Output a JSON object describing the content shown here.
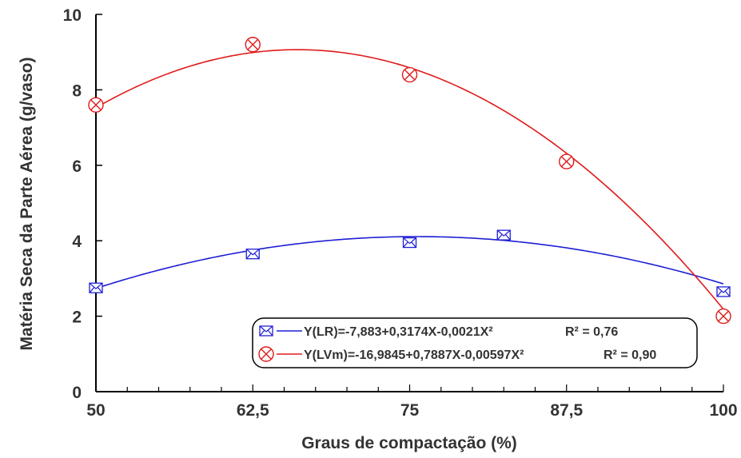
{
  "chart_data": {
    "type": "scatter",
    "title": "",
    "xlabel": "Graus de compactação (%)",
    "ylabel": "Matéria Seca da Parte Aérea (g/vaso)",
    "xlim": [
      50,
      100
    ],
    "ylim": [
      0,
      10
    ],
    "x_ticks": [
      50,
      62.5,
      75,
      87.5,
      100
    ],
    "x_tick_labels": [
      "50",
      "62,5",
      "75",
      "87,5",
      "100"
    ],
    "y_ticks": [
      0,
      2,
      4,
      6,
      8,
      10
    ],
    "y_tick_labels": [
      "0",
      "2",
      "4",
      "6",
      "8",
      "10"
    ],
    "grid": false,
    "legend_position": "bottom-right",
    "series": [
      {
        "name": "Y(LR)=-7,883+0,3174X-0,0021X²",
        "r2_label": "R² = 0,76",
        "color": "#1f1fd6",
        "marker": "envelope-square",
        "fit": {
          "a": -7.883,
          "b": 0.3174,
          "c": -0.0021
        },
        "points": [
          {
            "x": 50,
            "y": 2.75
          },
          {
            "x": 62.5,
            "y": 3.65
          },
          {
            "x": 75,
            "y": 3.95
          },
          {
            "x": 82.5,
            "y": 4.15
          },
          {
            "x": 100,
            "y": 2.65
          }
        ]
      },
      {
        "name": "Y(LVm)=-16,9845+0,7887X-0,00597X²",
        "r2_label": "R² = 0,90",
        "color": "#e01a1a",
        "marker": "crossed-circle",
        "fit": {
          "a": -16.9845,
          "b": 0.7887,
          "c": -0.00597
        },
        "points": [
          {
            "x": 50,
            "y": 7.6
          },
          {
            "x": 62.5,
            "y": 9.2
          },
          {
            "x": 75,
            "y": 8.4
          },
          {
            "x": 87.5,
            "y": 6.1
          },
          {
            "x": 100,
            "y": 2.0
          }
        ]
      }
    ]
  }
}
